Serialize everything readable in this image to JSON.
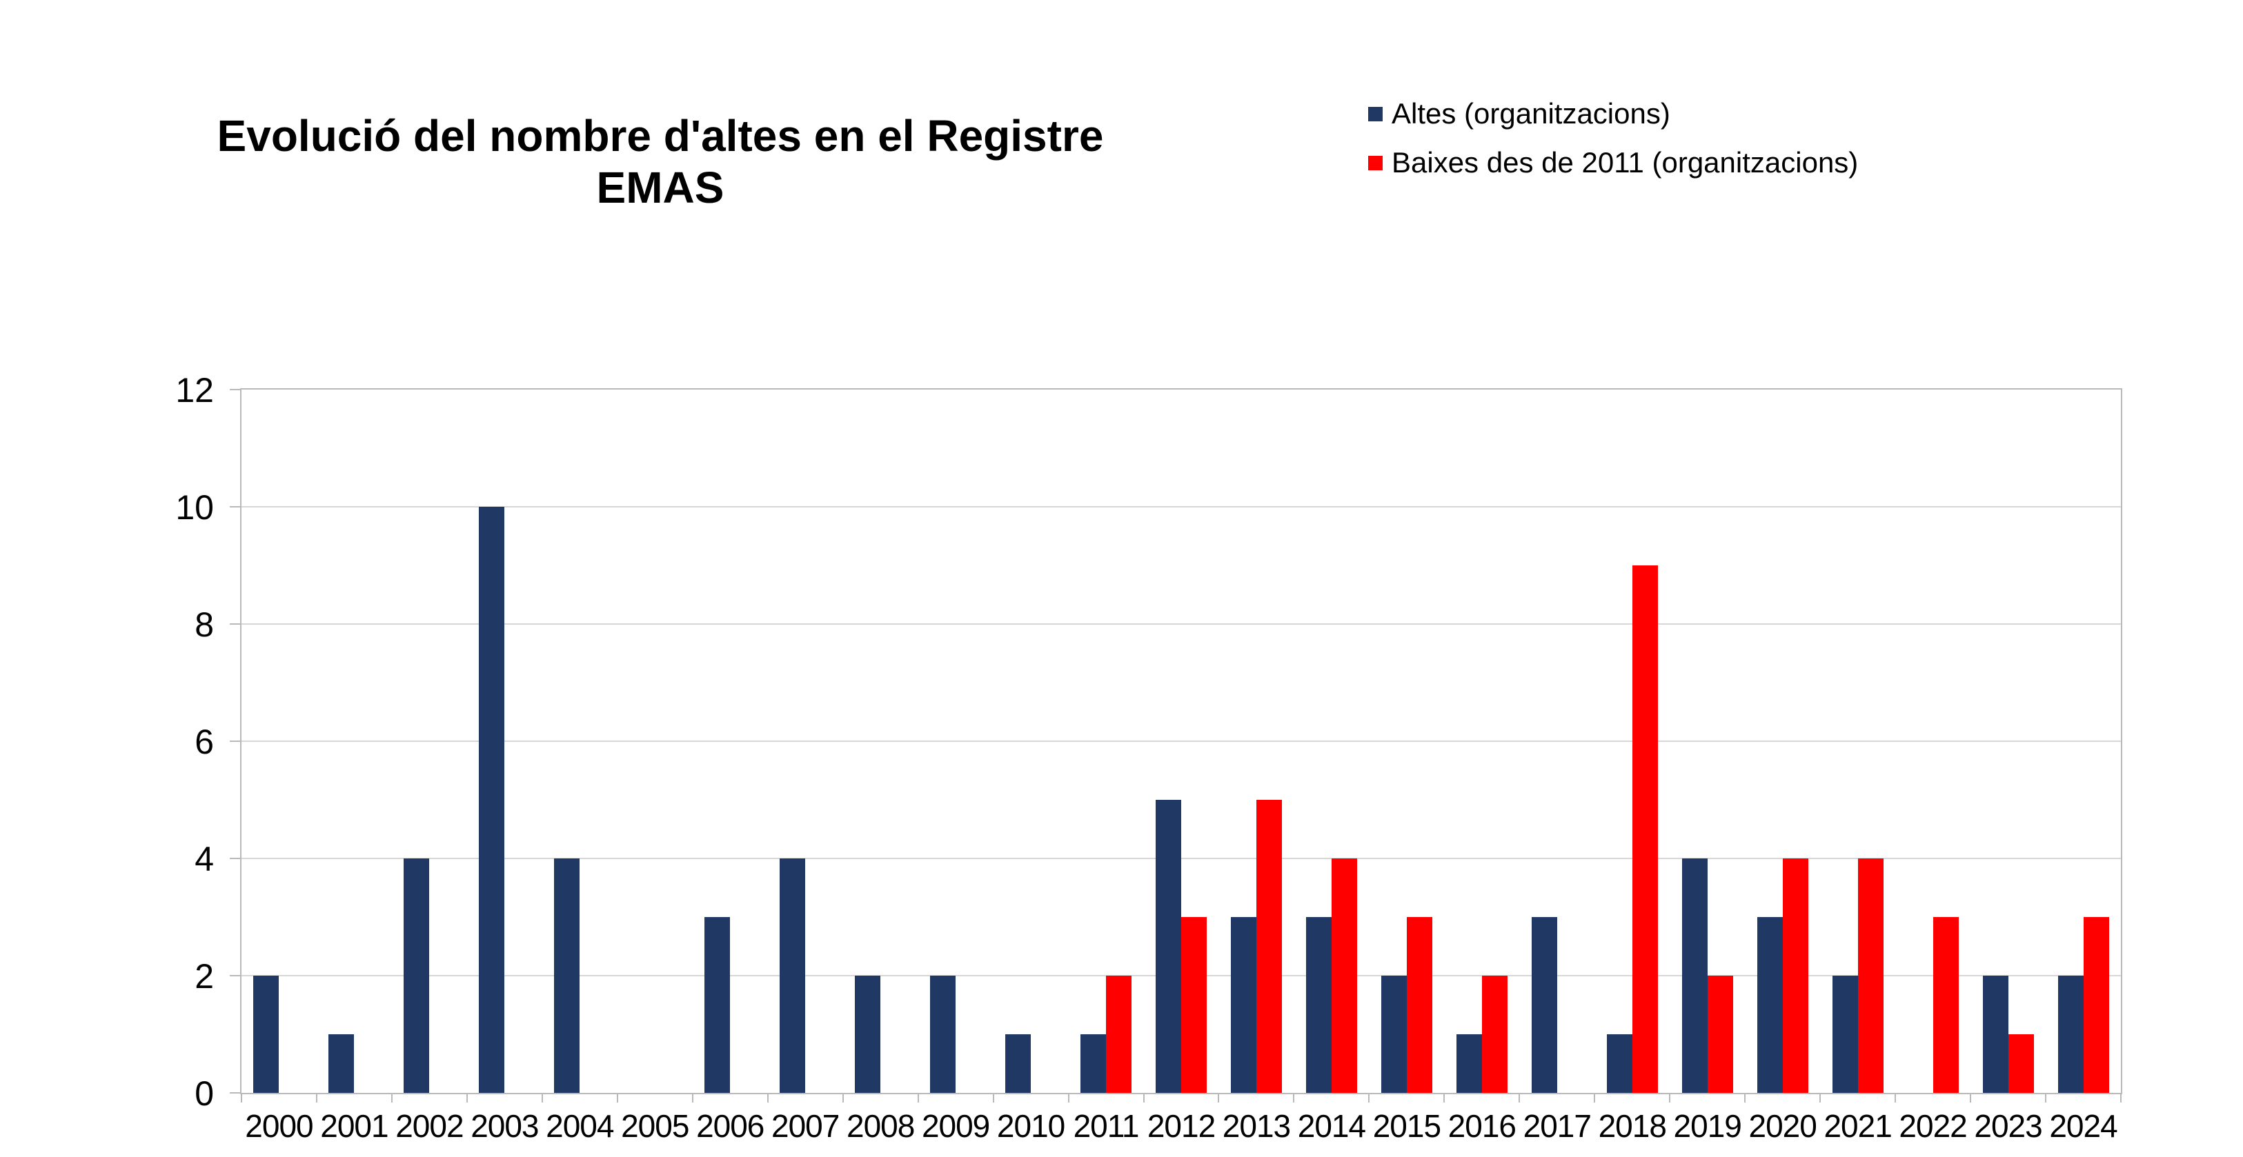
{
  "title": "Evolució del nombre d'altes en el Registre EMAS",
  "title_lines": [
    "Evolució del nombre d'altes en el Registre",
    "EMAS"
  ],
  "legend": {
    "items": [
      {
        "label": "Altes (organitzacions)",
        "color": "#203864"
      },
      {
        "label": "Baixes des de 2011 (organitzacions)",
        "color": "#ff0000"
      }
    ],
    "position": "top-right"
  },
  "chart_data": {
    "type": "bar",
    "title": "Evolució del nombre d'altes en el Registre EMAS",
    "categories": [
      "2000",
      "2001",
      "2002",
      "2003",
      "2004",
      "2005",
      "2006",
      "2007",
      "2008",
      "2009",
      "2010",
      "2011",
      "2012",
      "2013",
      "2014",
      "2015",
      "2016",
      "2017",
      "2018",
      "2019",
      "2020",
      "2021",
      "2022",
      "2023",
      "2024"
    ],
    "series": [
      {
        "name": "Altes (organitzacions)",
        "color": "#203864",
        "values": [
          2,
          1,
          4,
          10,
          4,
          0,
          3,
          4,
          2,
          2,
          1,
          1,
          5,
          3,
          3,
          2,
          1,
          3,
          1,
          4,
          3,
          2,
          0,
          2,
          2
        ]
      },
      {
        "name": "Baixes des de 2011 (organitzacions)",
        "color": "#ff0000",
        "values": [
          null,
          null,
          null,
          null,
          null,
          null,
          null,
          null,
          null,
          null,
          null,
          2,
          3,
          5,
          4,
          3,
          2,
          0,
          9,
          2,
          4,
          4,
          3,
          1,
          3
        ]
      }
    ],
    "xlabel": "",
    "ylabel": "",
    "ylim": [
      0,
      12
    ],
    "yticks": [
      0,
      2,
      4,
      6,
      8,
      10,
      12
    ],
    "grid": "horizontal",
    "legend_position": "top-right"
  }
}
